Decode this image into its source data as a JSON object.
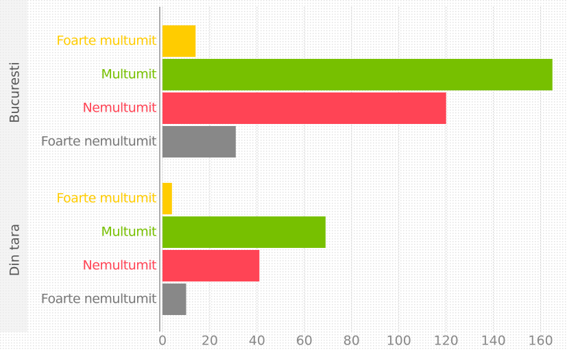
{
  "chart_data": {
    "type": "bar",
    "orientation": "horizontal",
    "categories": [
      "Foarte multumit",
      "Multumit",
      "Nemultumit",
      "Foarte nemultumit"
    ],
    "colors": [
      "#ffcc00",
      "#77c000",
      "#ff4455",
      "#888888"
    ],
    "series": [
      {
        "name": "Bucuresti",
        "values": [
          14,
          165,
          120,
          31
        ]
      },
      {
        "name": "Din tara",
        "values": [
          4,
          69,
          41,
          10
        ]
      }
    ],
    "xlim": [
      0,
      170
    ],
    "xticks": [
      0,
      20,
      40,
      60,
      80,
      100,
      120,
      140,
      160
    ],
    "grid": true
  }
}
